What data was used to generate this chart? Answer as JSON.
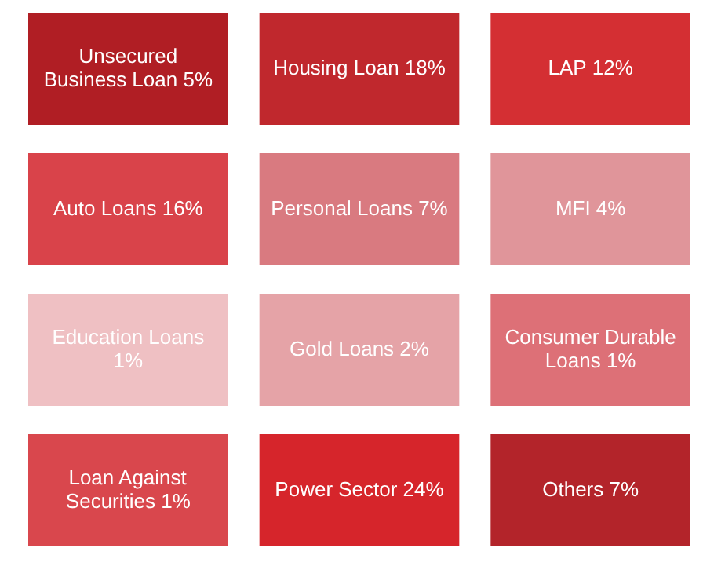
{
  "chart_data": {
    "type": "other",
    "categories": [
      "Unsecured Business Loan",
      "Housing Loan",
      "LAP",
      "Auto Loans",
      "Personal Loans",
      "MFI",
      "Education Loans",
      "Gold Loans",
      "Consumer Durable Loans",
      "Loan Against Securities",
      "Power Sector",
      "Others"
    ],
    "values": [
      5,
      18,
      12,
      16,
      7,
      4,
      1,
      2,
      1,
      1,
      24,
      7
    ],
    "value_labels": [
      "5%",
      "18%",
      "12%",
      "16%",
      "7%",
      "4%",
      "1%",
      "2%",
      "1%",
      "1%",
      "24%",
      "7%"
    ],
    "colors": [
      "#b01e24",
      "#c0282d",
      "#d42f33",
      "#d9434a",
      "#d97a80",
      "#e0959a",
      "#efc0c3",
      "#e5a3a7",
      "#dd7077",
      "#d9474d",
      "#d6252b",
      "#b3242a"
    ]
  }
}
